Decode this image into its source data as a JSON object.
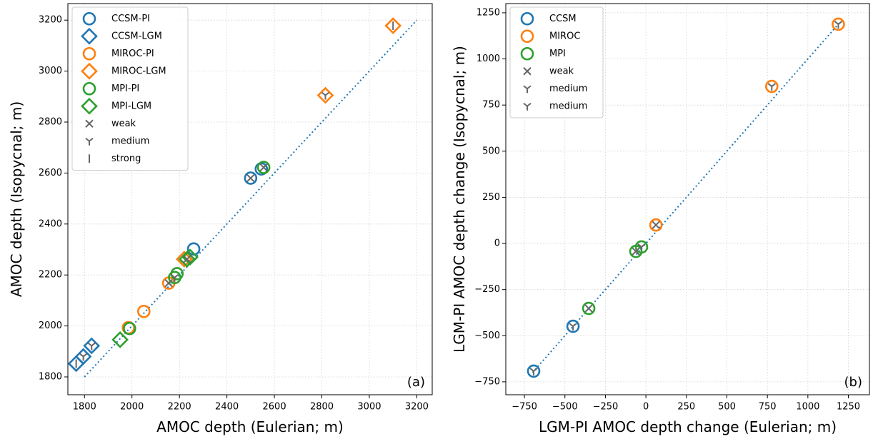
{
  "chart_data": [
    {
      "type": "scatter",
      "xlabel": "AMOC depth (Eulerian; m)",
      "ylabel": "AMOC depth (Isopycnal; m)",
      "annotation": "(a)",
      "xlim": [
        1730,
        3265
      ],
      "ylim": [
        1730,
        3265
      ],
      "xticks": [
        1800,
        2000,
        2200,
        2400,
        2600,
        2800,
        3000,
        3200
      ],
      "yticks": [
        1800,
        2000,
        2200,
        2400,
        2600,
        2800,
        3000,
        3200
      ],
      "grid": true,
      "legend": "upper left",
      "diagonal": [
        1800,
        3200
      ],
      "diagonal_color": "#1f77b4",
      "series": [
        {
          "name": "CCSM-PI",
          "color": "#1f77b4",
          "marker": "circle",
          "x": [
            2260,
            2500,
            2545
          ],
          "y": [
            2302,
            2580,
            2616
          ]
        },
        {
          "name": "CCSM-LGM",
          "color": "#1f77b4",
          "marker": "diamond",
          "x": [
            1765,
            1795,
            1830
          ],
          "y": [
            1852,
            1880,
            1922
          ]
        },
        {
          "name": "MIROC-PI",
          "color": "#ff7f0e",
          "marker": "circle",
          "x": [
            1985,
            2050,
            2155
          ],
          "y": [
            1993,
            2057,
            2168
          ]
        },
        {
          "name": "MIROC-LGM",
          "color": "#ff7f0e",
          "marker": "diamond",
          "x": [
            2220,
            2815,
            3100
          ],
          "y": [
            2262,
            2905,
            3178
          ]
        },
        {
          "name": "MPI-PI",
          "color": "#2ca02c",
          "marker": "circle",
          "x": [
            1990,
            2180,
            2190,
            2555
          ],
          "y": [
            1990,
            2190,
            2205,
            2622
          ]
        },
        {
          "name": "MPI-LGM",
          "color": "#2ca02c",
          "marker": "diamond",
          "x": [
            1950,
            2232,
            2245
          ],
          "y": [
            1946,
            2262,
            2270
          ]
        },
        {
          "name": "weak",
          "color": "#666666",
          "marker": "x",
          "x": [
            2500,
            2555,
            2155,
            2232
          ],
          "y": [
            2580,
            2622,
            2168,
            2262
          ]
        },
        {
          "name": "medium",
          "color": "#666666",
          "marker": "tri",
          "x": [
            2815,
            1830,
            2180,
            1795
          ],
          "y": [
            2905,
            1922,
            2190,
            1880
          ]
        },
        {
          "name": "strong",
          "color": "#666666",
          "marker": "vline",
          "x": [
            3100,
            1765
          ],
          "y": [
            3178,
            1852
          ]
        }
      ]
    },
    {
      "type": "scatter",
      "xlabel": "LGM-PI AMOC depth change (Eulerian; m)",
      "ylabel": "LGM-PI AMOC depth change (Isopycnal; m)",
      "annotation": "(b)",
      "xlim": [
        -865,
        1380
      ],
      "ylim": [
        -820,
        1300
      ],
      "xticks": [
        {
          "value": -750,
          "label": "−750"
        },
        {
          "value": -500,
          "label": "−500"
        },
        {
          "value": -250,
          "label": "−250"
        },
        0,
        250,
        500,
        750,
        1000,
        1250
      ],
      "yticks": [
        {
          "value": -750,
          "label": "−750"
        },
        {
          "value": -500,
          "label": "−500"
        },
        {
          "value": -250,
          "label": "−250"
        },
        0,
        250,
        500,
        750,
        1000,
        1250
      ],
      "grid": true,
      "legend": "upper left",
      "diagonal": [
        -700,
        1200
      ],
      "diagonal_color": "#1f77b4",
      "series": [
        {
          "name": "CCSM",
          "color": "#1f77b4",
          "marker": "circle",
          "x": [
            -693,
            -450
          ],
          "y": [
            -692,
            -449
          ]
        },
        {
          "name": "MIROC",
          "color": "#ff7f0e",
          "marker": "circle",
          "x": [
            62,
            777,
            1188
          ],
          "y": [
            100,
            851,
            1188
          ]
        },
        {
          "name": "MPI",
          "color": "#2ca02c",
          "marker": "circle",
          "x": [
            -353,
            -62,
            -27
          ],
          "y": [
            -352,
            -43,
            -19
          ]
        },
        {
          "name": "weak",
          "color": "#666666",
          "marker": "x",
          "x": [
            62,
            -353,
            -62
          ],
          "y": [
            100,
            -352,
            -43
          ]
        },
        {
          "name": "medium",
          "color": "#666666",
          "marker": "tri",
          "x": [
            -693,
            -450
          ],
          "y": [
            -692,
            -449
          ]
        },
        {
          "name": "medium",
          "color": "#666666",
          "marker": "tri",
          "x": [
            777,
            1188,
            -27
          ],
          "y": [
            851,
            1188,
            -19
          ]
        }
      ]
    }
  ]
}
